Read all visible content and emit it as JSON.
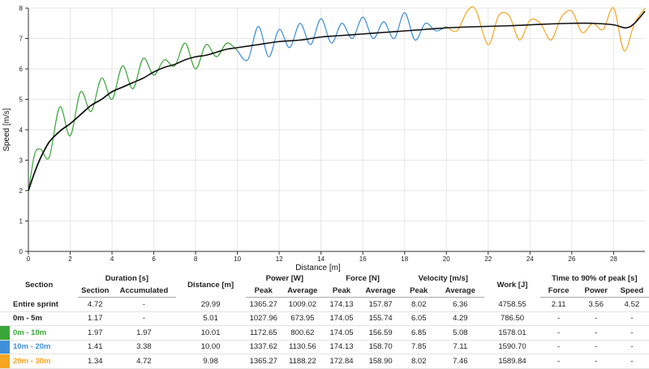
{
  "chart_data": {
    "type": "line",
    "xlabel": "Distance [m]",
    "ylabel": "Speed [m/s]",
    "xlim": [
      0,
      29.5
    ],
    "ylim": [
      0,
      8
    ],
    "xticks": [
      0,
      2,
      4,
      6,
      8,
      10,
      12,
      14,
      16,
      18,
      20,
      22,
      24,
      26,
      28
    ],
    "yticks": [
      0,
      1,
      2,
      3,
      4,
      5,
      6,
      7,
      8
    ],
    "grid": true,
    "segments": [
      {
        "name": "0m - 5m",
        "color": "#222222",
        "x": [
          0,
          0.3,
          0.6,
          1.0,
          1.5,
          2.0,
          2.5,
          3.0,
          3.5,
          4.0,
          4.5,
          5.0
        ],
        "values": [
          2.0,
          2.6,
          3.1,
          3.6,
          3.95,
          4.2,
          4.5,
          4.8,
          5.0,
          5.25,
          5.4,
          5.55
        ]
      },
      {
        "name": "0m - 10m",
        "color": "#3aa63a",
        "x": [
          0,
          0.3,
          0.6,
          1.0,
          1.5,
          2.0,
          2.5,
          3.0,
          3.5,
          4.0,
          4.5,
          5.0,
          5.5,
          6.0,
          6.5,
          7.0,
          7.5,
          8.0,
          8.5,
          9.0,
          9.5,
          10.0
        ],
        "values": [
          1.95,
          3.2,
          3.35,
          3.1,
          4.75,
          3.8,
          5.25,
          4.6,
          5.7,
          5.0,
          6.1,
          5.35,
          6.35,
          5.8,
          6.3,
          6.1,
          6.85,
          6.0,
          6.8,
          6.4,
          6.85,
          6.6
        ]
      },
      {
        "name": "10m - 20m",
        "color": "#3f8fd8",
        "x": [
          10.0,
          10.5,
          11.0,
          11.5,
          12.0,
          12.5,
          13.0,
          13.5,
          14.0,
          14.5,
          15.0,
          15.5,
          16.0,
          16.5,
          17.0,
          17.5,
          18.0,
          18.5,
          19.0,
          19.5,
          20.0
        ],
        "values": [
          6.6,
          6.3,
          7.4,
          6.4,
          7.3,
          6.7,
          7.5,
          6.8,
          7.65,
          6.85,
          7.5,
          7.0,
          7.7,
          7.0,
          7.55,
          7.0,
          7.85,
          6.95,
          7.5,
          7.25,
          7.4
        ]
      },
      {
        "name": "20m - 30m",
        "color": "#f5a623",
        "x": [
          20.0,
          20.5,
          21.0,
          21.4,
          22.0,
          22.5,
          23.0,
          23.5,
          24.0,
          24.5,
          25.0,
          25.5,
          26.0,
          26.5,
          27.0,
          27.5,
          28.0,
          28.5,
          29.0,
          29.5
        ],
        "values": [
          7.4,
          7.25,
          7.9,
          7.95,
          6.8,
          7.75,
          7.75,
          6.95,
          7.6,
          7.5,
          6.95,
          7.7,
          7.9,
          7.2,
          7.5,
          7.3,
          8.0,
          6.6,
          7.5,
          8.0
        ]
      },
      {
        "name": "Entire sprint (smoothed)",
        "color": "#111111",
        "x": [
          0,
          0.3,
          0.6,
          1.0,
          1.5,
          2.0,
          2.5,
          3.0,
          3.5,
          4.0,
          4.5,
          5.0,
          5.5,
          6.0,
          6.5,
          7.0,
          7.5,
          8.0,
          8.5,
          9.0,
          9.5,
          10.0,
          11.0,
          12.0,
          13.0,
          14.0,
          15.0,
          16.0,
          17.0,
          18.0,
          19.0,
          20.0,
          21.0,
          22.0,
          23.0,
          24.0,
          25.0,
          26.0,
          27.0,
          28.0,
          28.6,
          29.0,
          29.5
        ],
        "values": [
          2.0,
          2.6,
          3.1,
          3.6,
          3.95,
          4.2,
          4.5,
          4.8,
          5.0,
          5.25,
          5.4,
          5.55,
          5.7,
          5.9,
          6.05,
          6.15,
          6.3,
          6.4,
          6.45,
          6.55,
          6.65,
          6.7,
          6.8,
          6.9,
          6.95,
          7.05,
          7.1,
          7.15,
          7.2,
          7.25,
          7.3,
          7.35,
          7.38,
          7.4,
          7.42,
          7.45,
          7.48,
          7.5,
          7.5,
          7.45,
          7.35,
          7.5,
          7.9
        ]
      }
    ]
  },
  "table": {
    "headers": {
      "section": "Section",
      "duration": "Duration [s]",
      "distance": "Distance [m]",
      "power": "Power [W]",
      "force": "Force [N]",
      "velocity": "Velocity [m/s]",
      "work": "Work [J]",
      "time90": "Time to 90% of peak [s]",
      "sub_section": "Section",
      "sub_accumulated": "Accumulated",
      "sub_power_peak": "Peak",
      "sub_power_avg": "Average",
      "sub_force_peak": "Peak",
      "sub_force_avg": "Average",
      "sub_vel_peak": "Peak",
      "sub_vel_avg": "Average",
      "sub_t_force": "Force",
      "sub_t_power": "Power",
      "sub_t_speed": "Speed"
    },
    "rows": [
      {
        "label": "Entire sprint",
        "color": "",
        "text_color": "#222222",
        "cells": [
          "4.72",
          "-",
          "29.99",
          "1365.27",
          "1009.02",
          "174.13",
          "157.87",
          "8.02",
          "6.36",
          "4758.55",
          "2.11",
          "3.56",
          "4.52"
        ]
      },
      {
        "label": "0m - 5m",
        "color": "",
        "text_color": "#222222",
        "cells": [
          "1.17",
          "-",
          "5.01",
          "1027.96",
          "673.95",
          "174.05",
          "155.74",
          "6.05",
          "4.29",
          "786.50",
          "-",
          "-",
          "-"
        ]
      },
      {
        "label": "0m - 10m",
        "color": "#3aa63a",
        "text_color": "#3aa63a",
        "cells": [
          "1.97",
          "1.97",
          "10.01",
          "1172.65",
          "800.62",
          "174.05",
          "156.59",
          "6.85",
          "5.08",
          "1578.01",
          "-",
          "-",
          "-"
        ]
      },
      {
        "label": "10m - 20m",
        "color": "#3f8fd8",
        "text_color": "#3f8fd8",
        "cells": [
          "1.41",
          "3.38",
          "10.00",
          "1337.62",
          "1130.56",
          "174.13",
          "158.70",
          "7.85",
          "7.11",
          "1590.70",
          "-",
          "-",
          "-"
        ]
      },
      {
        "label": "20m - 30m",
        "color": "#f5a623",
        "text_color": "#f5a623",
        "cells": [
          "1.34",
          "4.72",
          "9.98",
          "1365.27",
          "1188.22",
          "172.84",
          "158.90",
          "8.02",
          "7.46",
          "1589.84",
          "-",
          "-",
          "-"
        ]
      }
    ]
  }
}
